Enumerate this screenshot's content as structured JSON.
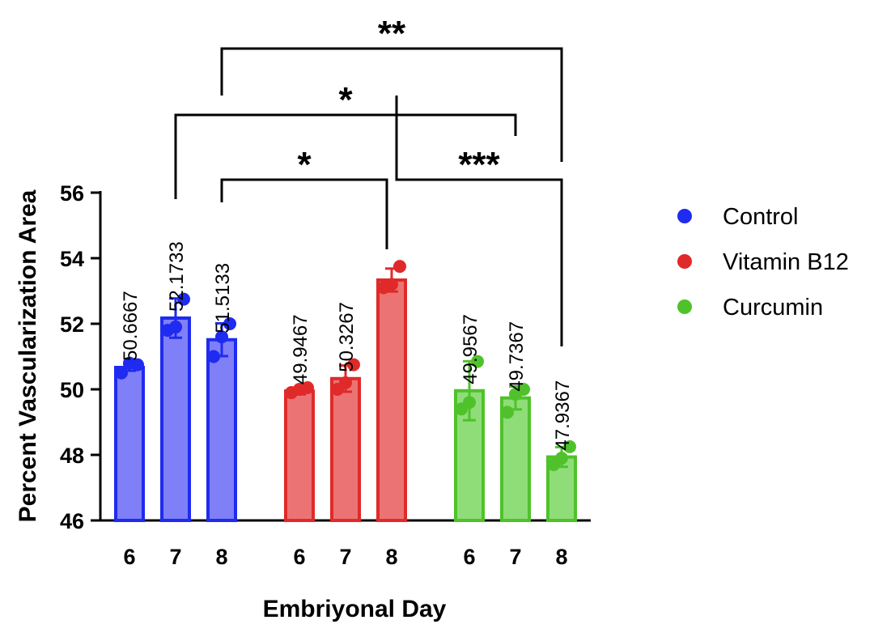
{
  "chart_data": {
    "type": "bar",
    "xlabel": "Embriyonal Day",
    "ylabel": "Percent Vascularization Area",
    "ylim": [
      46,
      56
    ],
    "yticks": [
      46,
      48,
      50,
      52,
      54,
      56
    ],
    "legend_position": "right",
    "series": [
      {
        "name": "Control",
        "color": "#1f2bf0",
        "fill": "#7f7ff7",
        "categories": [
          "6",
          "7",
          "8"
        ],
        "values": [
          50.6667,
          52.1733,
          51.5133
        ],
        "labels": [
          "50.6667",
          "52.1733",
          "51.5133"
        ],
        "sd": [
          0.1,
          0.6,
          0.5
        ],
        "points": [
          [
            50.5,
            50.8,
            50.75
          ],
          [
            51.8,
            51.9,
            52.75
          ],
          [
            51.0,
            51.6,
            52.0
          ]
        ]
      },
      {
        "name": "Vitamin B12",
        "color": "#e02a2a",
        "fill": "#ec7373",
        "categories": [
          "6",
          "7",
          "8"
        ],
        "values": [
          49.9467,
          50.3267,
          53.3333
        ],
        "labels": [
          "49.9467",
          "50.3267",
          ""
        ],
        "sd": [
          0.1,
          0.4,
          0.35
        ],
        "points": [
          [
            49.9,
            50.0,
            50.05
          ],
          [
            50.0,
            50.2,
            50.75
          ],
          [
            53.1,
            53.2,
            53.75
          ]
        ]
      },
      {
        "name": "Curcumin",
        "color": "#4fc22b",
        "fill": "#8fdd78",
        "categories": [
          "6",
          "7",
          "8"
        ],
        "values": [
          49.9567,
          49.7367,
          47.9367
        ],
        "labels": [
          "49.9567",
          "49.7367",
          "47.9367"
        ],
        "sd": [
          0.9,
          0.35,
          0.3
        ],
        "points": [
          [
            49.4,
            49.6,
            50.85
          ],
          [
            49.3,
            49.85,
            50.0
          ],
          [
            47.7,
            47.9,
            48.25
          ]
        ]
      }
    ],
    "significance": [
      {
        "from": [
          0,
          2
        ],
        "to": [
          2,
          2
        ],
        "label": "**",
        "level": 1
      },
      {
        "from": [
          0,
          1
        ],
        "to": [
          2,
          1
        ],
        "label": "*",
        "level": 2
      },
      {
        "from": [
          0,
          2
        ],
        "to": [
          1,
          2
        ],
        "label": "*",
        "level": 3
      },
      {
        "from": [
          1,
          2
        ],
        "to": [
          2,
          2
        ],
        "label": "***",
        "level": 3
      }
    ]
  }
}
